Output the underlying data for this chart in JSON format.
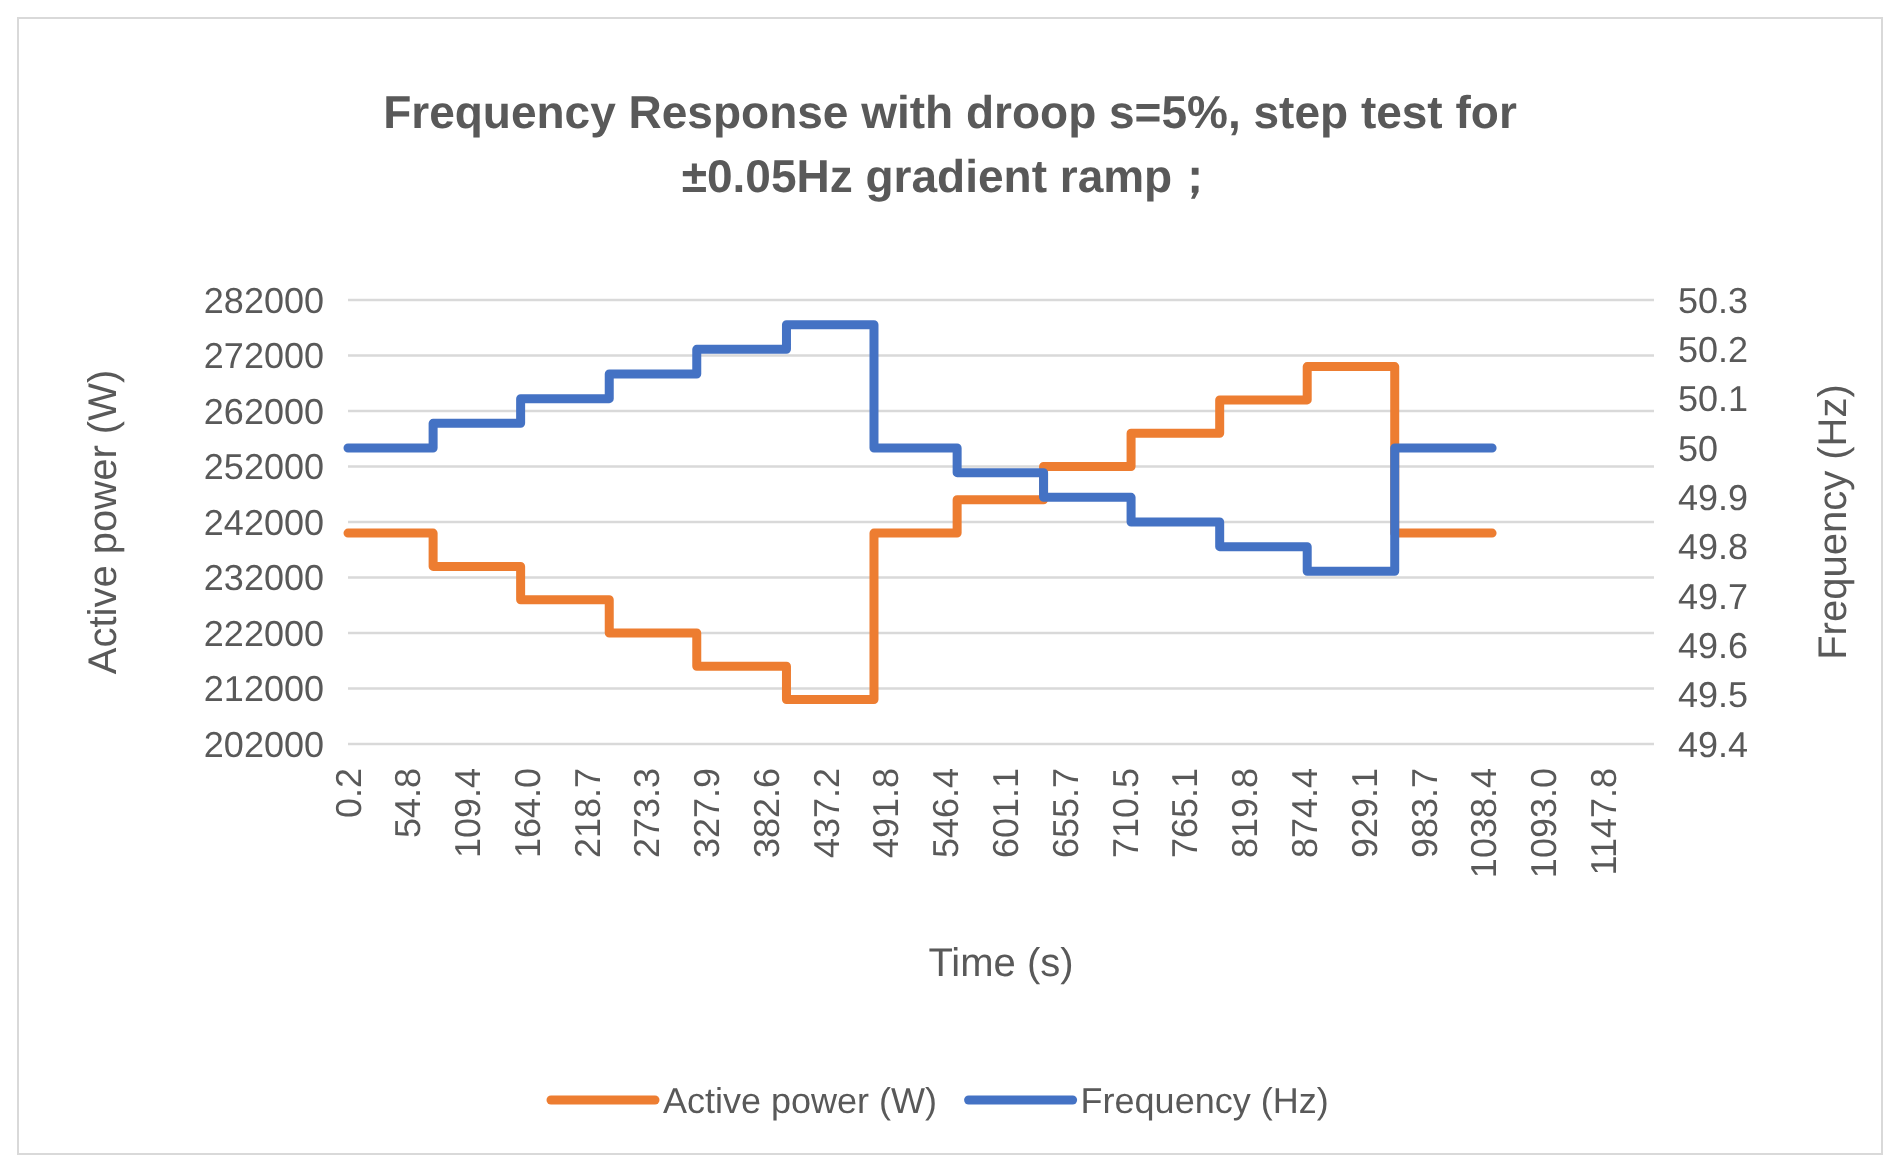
{
  "chart_data": {
    "type": "step",
    "title": "Frequency Response with droop s=5%, step test for ±0.05Hz gradient ramp；",
    "xlabel": "Time (s)",
    "ylabel": "Active power (W)",
    "y2label": "Frequency (Hz)",
    "xlim": [
      0.2,
      1194
    ],
    "xticks": [
      0.2,
      54.8,
      109.4,
      {
        "value": 164,
        "label": "164.0"
      },
      218.7,
      273.3,
      327.9,
      382.6,
      437.2,
      491.8,
      546.4,
      601.1,
      655.7,
      710.5,
      765.1,
      819.8,
      874.4,
      929.1,
      983.7,
      1038.4,
      {
        "value": 1093,
        "label": "1093.0"
      },
      1147.8
    ],
    "ylim": [
      202000,
      282000
    ],
    "yticks": [
      202000,
      212000,
      222000,
      232000,
      242000,
      252000,
      262000,
      272000,
      282000
    ],
    "y2lim": [
      49.4,
      50.3
    ],
    "y2ticks": [
      49.4,
      49.5,
      49.6,
      49.7,
      49.8,
      49.9,
      50,
      50.1,
      50.2,
      50.3
    ],
    "grid": "y",
    "legend": "bottom",
    "series": [
      {
        "name": "Active power (W)",
        "color": "#ed7d31",
        "x": [
          0.2,
          78,
          158,
          239,
          319,
          401,
          481,
          557,
          636,
          716,
          797,
          877,
          957,
          1046
        ],
        "values": [
          240000,
          234000,
          228000,
          222000,
          216000,
          210000,
          240000,
          246000,
          252000,
          258000,
          264000,
          270000,
          240000,
          240000
        ]
      },
      {
        "name": "Frequency (Hz)",
        "color": "#4472c4",
        "axis": "y2",
        "x": [
          0.2,
          78,
          158,
          239,
          319,
          401,
          481,
          557,
          636,
          716,
          797,
          877,
          957,
          1046
        ],
        "values": [
          50,
          50.05,
          50.1,
          50.15,
          50.2,
          50.25,
          50,
          49.95,
          49.9,
          49.85,
          49.8,
          49.75,
          50,
          50
        ]
      }
    ]
  }
}
